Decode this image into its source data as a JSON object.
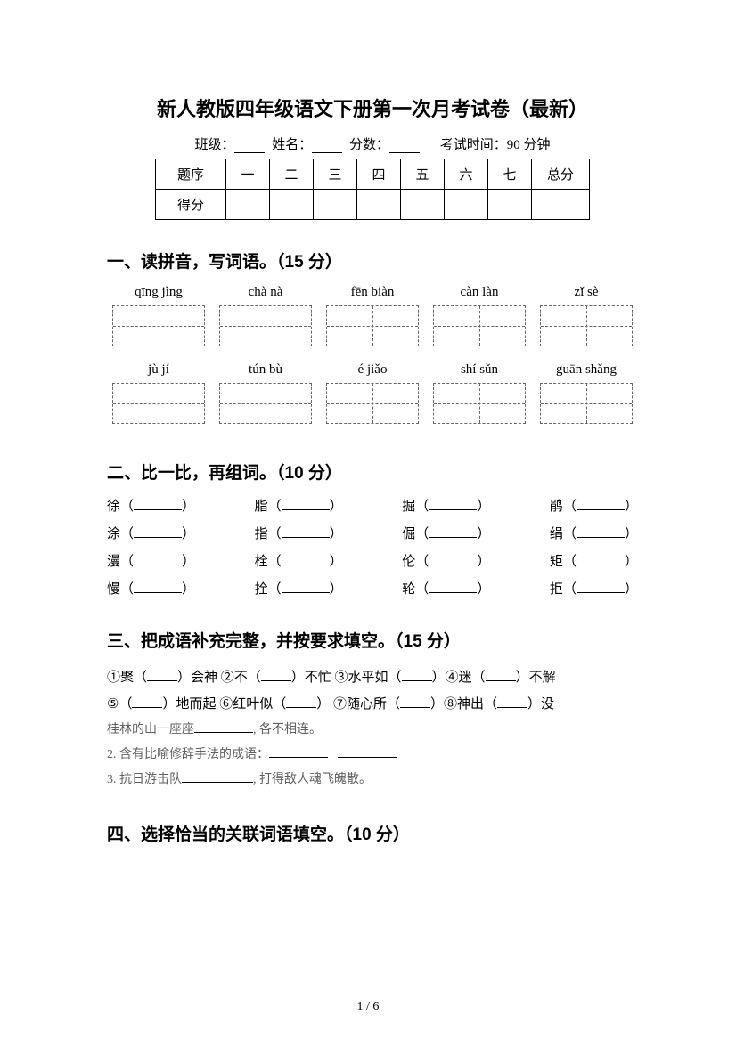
{
  "title": "新人教版四年级语文下册第一次月考试卷（最新）",
  "meta": {
    "class_label": "班级：",
    "name_label": "姓名：",
    "score_label": "分数：",
    "time_label": "考试时间：90 分钟"
  },
  "score_table": {
    "row_label": "题序",
    "score_row_label": "得分",
    "cols": [
      "一",
      "二",
      "三",
      "四",
      "五",
      "六",
      "七"
    ],
    "total_label": "总分"
  },
  "sections": {
    "s1": {
      "heading": "一、读拼音，写词语。（15 分）"
    },
    "s2": {
      "heading": "二、比一比，再组词。（10 分）"
    },
    "s3": {
      "heading": "三、把成语补充完整，并按要求填空。（15 分）"
    },
    "s4": {
      "heading": "四、选择恰当的关联词语填空。（10 分）"
    }
  },
  "pinyin_rows": [
    [
      "qīng jìng",
      "chà nà",
      "fēn biàn",
      "càn làn",
      "zǐ sè"
    ],
    [
      "jù  jí",
      "tún bù",
      "é jiǎo",
      "shí sǔn",
      "guān shǎng"
    ]
  ],
  "compare_pairs": [
    [
      [
        "徐",
        "脂",
        "掘",
        "鹃"
      ],
      [
        "涂",
        "指",
        "倔",
        "绢"
      ]
    ],
    [
      [
        "漫",
        "栓",
        "伦",
        "矩"
      ],
      [
        "慢",
        "拴",
        "轮",
        "拒"
      ]
    ]
  ],
  "idioms": {
    "l1_1": "①聚（",
    "l1_2": "）会神 ②不（",
    "l1_3": "）不忙 ③水平如（",
    "l1_4": "）④迷（",
    "l1_5": "）不解",
    "l2_1": "⑤（",
    "l2_2": "）地而起 ⑥红叶似（",
    "l2_3": "） ⑦随心所（",
    "l2_4": "）⑧神出（",
    "l2_5": "）没",
    "note1_a": "桂林的山一座座",
    "note1_b": ", 各不相连。",
    "note2_a": "2. 含有比喻修辞手法的成语：",
    "note3_a": "3. 抗日游击队",
    "note3_b": ", 打得敌人魂飞魄散。"
  },
  "page_number": "1 / 6"
}
